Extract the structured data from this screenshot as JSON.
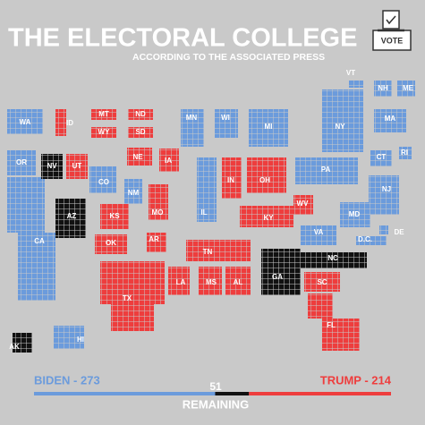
{
  "header": {
    "title": "THE ELECTORAL COLLEGE",
    "subtitle": "ACCORDING TO THE ASSOCIATED PRESS"
  },
  "ballot_box": {
    "label": "VOTE"
  },
  "colors": {
    "biden": "#6b9bdc",
    "trump": "#ee3d3d",
    "undecided": "#111111"
  },
  "states": [
    {
      "label": "WA",
      "winner": "biden"
    },
    {
      "label": "OR",
      "winner": "biden"
    },
    {
      "label": "CA",
      "winner": "biden"
    },
    {
      "label": "ID",
      "winner": "trump"
    },
    {
      "label": "MT",
      "winner": "trump"
    },
    {
      "label": "WY",
      "winner": "trump"
    },
    {
      "label": "ND",
      "winner": "trump"
    },
    {
      "label": "SD",
      "winner": "trump"
    },
    {
      "label": "NV",
      "winner": "undecided"
    },
    {
      "label": "UT",
      "winner": "trump"
    },
    {
      "label": "CO",
      "winner": "biden"
    },
    {
      "label": "NE",
      "winner": "trump"
    },
    {
      "label": "KS",
      "winner": "trump"
    },
    {
      "label": "OK",
      "winner": "trump"
    },
    {
      "label": "AZ",
      "winner": "undecided"
    },
    {
      "label": "NM",
      "winner": "biden"
    },
    {
      "label": "TX",
      "winner": "trump"
    },
    {
      "label": "MN",
      "winner": "biden"
    },
    {
      "label": "IA",
      "winner": "trump"
    },
    {
      "label": "MO",
      "winner": "trump"
    },
    {
      "label": "AR",
      "winner": "trump"
    },
    {
      "label": "LA",
      "winner": "trump"
    },
    {
      "label": "MS",
      "winner": "trump"
    },
    {
      "label": "AL",
      "winner": "trump"
    },
    {
      "label": "WI",
      "winner": "biden"
    },
    {
      "label": "IL",
      "winner": "biden"
    },
    {
      "label": "MI",
      "winner": "biden"
    },
    {
      "label": "IN",
      "winner": "trump"
    },
    {
      "label": "OH",
      "winner": "trump"
    },
    {
      "label": "KY",
      "winner": "trump"
    },
    {
      "label": "TN",
      "winner": "trump"
    },
    {
      "label": "WV",
      "winner": "trump"
    },
    {
      "label": "VA",
      "winner": "biden"
    },
    {
      "label": "NC",
      "winner": "undecided"
    },
    {
      "label": "SC",
      "winner": "trump"
    },
    {
      "label": "GA",
      "winner": "undecided"
    },
    {
      "label": "FL",
      "winner": "trump"
    },
    {
      "label": "PA",
      "winner": "biden"
    },
    {
      "label": "NY",
      "winner": "biden"
    },
    {
      "label": "VT",
      "winner": "biden"
    },
    {
      "label": "NH",
      "winner": "biden"
    },
    {
      "label": "ME",
      "winner": "biden"
    },
    {
      "label": "MA",
      "winner": "biden"
    },
    {
      "label": "CT",
      "winner": "biden"
    },
    {
      "label": "RI",
      "winner": "biden"
    },
    {
      "label": "NJ",
      "winner": "biden"
    },
    {
      "label": "MD",
      "winner": "biden"
    },
    {
      "label": "DE",
      "winner": "biden"
    },
    {
      "label": "D.C.",
      "winner": "biden"
    },
    {
      "label": "AK",
      "winner": "undecided"
    },
    {
      "label": "HI",
      "winner": "biden"
    }
  ],
  "tally": {
    "values": [
      273,
      51,
      214
    ],
    "value_labels": [
      "BIDEN - 273",
      "51",
      "TRUMP - 214"
    ],
    "caption": "REMAINING"
  }
}
